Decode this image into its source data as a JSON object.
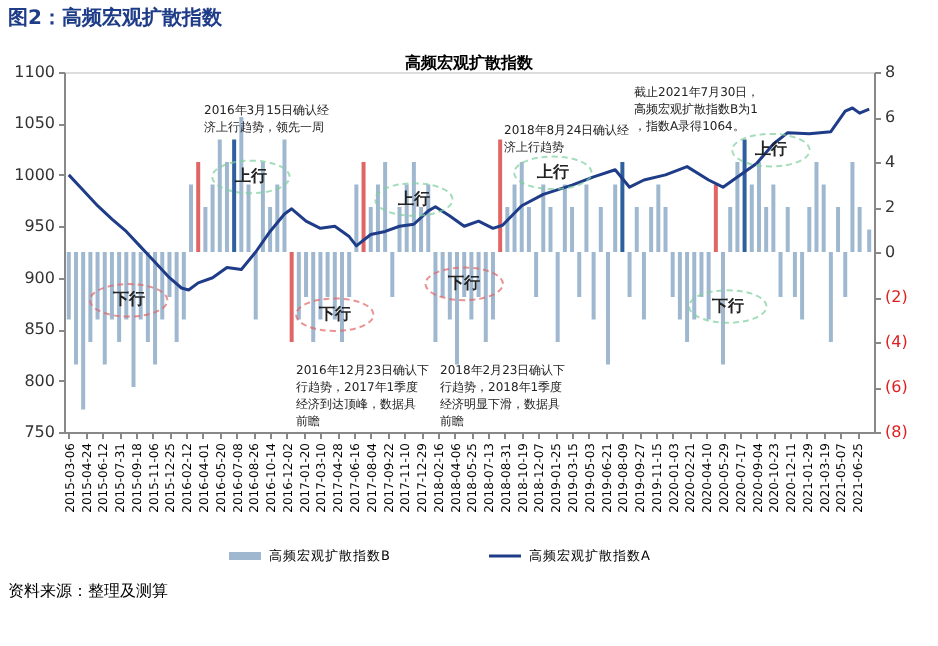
{
  "chart_data": {
    "type": "bar",
    "title": "图2：高频宏观扩散指数",
    "subtitle": "高频宏观扩散指数",
    "x": [
      "2015-03-06",
      "2015-03-27",
      "2015-04-17",
      "2015-05-08",
      "2015-05-29",
      "2015-06-19",
      "2015-07-10",
      "2015-07-31",
      "2015-08-21",
      "2015-09-11",
      "2015-10-02",
      "2015-10-23",
      "2015-11-13",
      "2015-12-04",
      "2015-12-25",
      "2016-01-15",
      "2016-02-05",
      "2016-02-26",
      "2016-03-18",
      "2016-04-08",
      "2016-04-29",
      "2016-05-20",
      "2016-06-10",
      "2016-07-01",
      "2016-07-22",
      "2016-08-12",
      "2016-09-02",
      "2016-09-23",
      "2016-10-14",
      "2016-11-04",
      "2016-11-25",
      "2016-12-16",
      "2017-01-06",
      "2017-01-27",
      "2017-02-17",
      "2017-03-10",
      "2017-03-31",
      "2017-04-21",
      "2017-05-12",
      "2017-06-02",
      "2017-06-23",
      "2017-07-14",
      "2017-08-04",
      "2017-08-25",
      "2017-09-15",
      "2017-10-06",
      "2017-10-27",
      "2017-11-17",
      "2017-12-08",
      "2017-12-29",
      "2018-01-19",
      "2018-02-09",
      "2018-03-02",
      "2018-03-23",
      "2018-04-13",
      "2018-05-04",
      "2018-05-25",
      "2018-06-15",
      "2018-07-06",
      "2018-07-27",
      "2018-08-17",
      "2018-09-07",
      "2018-09-28",
      "2018-10-19",
      "2018-11-09",
      "2018-11-30",
      "2018-12-21",
      "2019-01-11",
      "2019-02-01",
      "2019-02-22",
      "2019-03-15",
      "2019-04-05",
      "2019-04-26",
      "2019-05-17",
      "2019-06-07",
      "2019-06-28",
      "2019-07-19",
      "2019-08-09",
      "2019-08-30",
      "2019-09-20",
      "2019-10-11",
      "2019-11-01",
      "2019-11-22",
      "2019-12-13",
      "2020-01-03",
      "2020-01-24",
      "2020-02-14",
      "2020-03-06",
      "2020-03-27",
      "2020-04-17",
      "2020-05-08",
      "2020-05-29",
      "2020-06-19",
      "2020-07-10",
      "2020-07-31",
      "2020-08-21",
      "2020-09-11",
      "2020-10-02",
      "2020-10-23",
      "2020-11-13",
      "2020-12-04",
      "2020-12-25",
      "2021-01-15",
      "2021-02-05",
      "2021-02-26",
      "2021-03-19",
      "2021-04-09",
      "2021-04-30",
      "2021-05-21",
      "2021-06-11",
      "2021-07-02",
      "2021-07-30"
    ],
    "series": [
      {
        "name": "高频宏观扩散指数B",
        "axis": "y2",
        "color": "#9fb8d0",
        "values": [
          -3,
          -5,
          -7,
          -4,
          -3,
          -5,
          -3,
          -4,
          -3,
          -6,
          -3,
          -4,
          -5,
          -3,
          -2,
          -4,
          -3,
          3,
          4,
          2,
          3,
          5,
          4,
          5,
          6,
          3,
          -3,
          4,
          2,
          3,
          5,
          -4,
          -3,
          -2,
          -4,
          -3,
          -2,
          -3,
          -4,
          -2,
          3,
          4,
          2,
          3,
          4,
          -2,
          2,
          3,
          4,
          2,
          3,
          -4,
          -2,
          -3,
          -5,
          -2,
          -3,
          -2,
          -4,
          -3,
          5,
          2,
          3,
          4,
          2,
          -2,
          3,
          2,
          -4,
          3,
          2,
          -2,
          3,
          -3,
          2,
          -5,
          3,
          4,
          -2,
          2,
          -3,
          2,
          3,
          2,
          -2,
          -3,
          -4,
          -3,
          -2,
          -3,
          3,
          -5,
          2,
          4,
          5,
          3,
          4,
          2,
          3,
          -2,
          2,
          -2,
          -3,
          2,
          4,
          3,
          -4,
          2,
          -2,
          4,
          2,
          1
        ],
        "colors": [
          "#9fb8d0",
          "#9fb8d0",
          "#9fb8d0",
          "#9fb8d0",
          "#9fb8d0",
          "#9fb8d0",
          "#9fb8d0",
          "#9fb8d0",
          "#9fb8d0",
          "#9fb8d0",
          "#9fb8d0",
          "#9fb8d0",
          "#9fb8d0",
          "#9fb8d0",
          "#9fb8d0",
          "#9fb8d0",
          "#9fb8d0",
          "#9fb8d0",
          "#e06666",
          "#9fb8d0",
          "#9fb8d0",
          "#9fb8d0",
          "#9fb8d0",
          "#2e5f9e",
          "#9fb8d0",
          "#9fb8d0",
          "#9fb8d0",
          "#9fb8d0",
          "#9fb8d0",
          "#9fb8d0",
          "#9fb8d0",
          "#e06666",
          "#9fb8d0",
          "#9fb8d0",
          "#9fb8d0",
          "#9fb8d0",
          "#9fb8d0",
          "#9fb8d0",
          "#9fb8d0",
          "#9fb8d0",
          "#9fb8d0",
          "#e06666",
          "#9fb8d0",
          "#9fb8d0",
          "#9fb8d0",
          "#9fb8d0",
          "#9fb8d0",
          "#9fb8d0",
          "#9fb8d0",
          "#9fb8d0",
          "#9fb8d0",
          "#9fb8d0",
          "#9fb8d0",
          "#9fb8d0",
          "#9fb8d0",
          "#9fb8d0",
          "#9fb8d0",
          "#9fb8d0",
          "#9fb8d0",
          "#9fb8d0",
          "#e06666",
          "#9fb8d0",
          "#9fb8d0",
          "#9fb8d0",
          "#9fb8d0",
          "#9fb8d0",
          "#9fb8d0",
          "#9fb8d0",
          "#9fb8d0",
          "#9fb8d0",
          "#9fb8d0",
          "#9fb8d0",
          "#9fb8d0",
          "#9fb8d0",
          "#9fb8d0",
          "#9fb8d0",
          "#9fb8d0",
          "#2e5f9e",
          "#9fb8d0",
          "#9fb8d0",
          "#9fb8d0",
          "#9fb8d0",
          "#9fb8d0",
          "#9fb8d0",
          "#9fb8d0",
          "#9fb8d0",
          "#9fb8d0",
          "#9fb8d0",
          "#9fb8d0",
          "#9fb8d0",
          "#e06666",
          "#9fb8d0",
          "#9fb8d0",
          "#9fb8d0",
          "#2e5f9e",
          "#9fb8d0",
          "#9fb8d0",
          "#9fb8d0",
          "#9fb8d0",
          "#9fb8d0",
          "#9fb8d0",
          "#9fb8d0",
          "#9fb8d0",
          "#9fb8d0",
          "#9fb8d0",
          "#9fb8d0",
          "#9fb8d0",
          "#9fb8d0",
          "#9fb8d0",
          "#9fb8d0",
          "#9fb8d0",
          "#9fb8d0"
        ]
      },
      {
        "name": "高频宏观扩散指数A",
        "type": "line",
        "color": "#1f3c88",
        "x": [
          "2015-03-06",
          "2015-04-17",
          "2015-05-29",
          "2015-07-10",
          "2015-08-21",
          "2015-10-02",
          "2015-11-13",
          "2015-12-25",
          "2016-01-29",
          "2016-02-19",
          "2016-03-18",
          "2016-04-29",
          "2016-06-10",
          "2016-07-22",
          "2016-09-02",
          "2016-10-14",
          "2016-11-25",
          "2016-12-16",
          "2017-01-27",
          "2017-03-10",
          "2017-04-21",
          "2017-06-02",
          "2017-06-23",
          "2017-08-04",
          "2017-09-15",
          "2017-10-27",
          "2017-12-08",
          "2018-01-19",
          "2018-02-09",
          "2018-03-23",
          "2018-05-04",
          "2018-06-15",
          "2018-07-27",
          "2018-08-24",
          "2018-10-19",
          "2018-12-21",
          "2019-03-15",
          "2019-05-17",
          "2019-07-19",
          "2019-08-30",
          "2019-10-11",
          "2019-12-13",
          "2020-02-14",
          "2020-04-17",
          "2020-05-29",
          "2020-07-10",
          "2020-09-04",
          "2020-10-23",
          "2020-12-04",
          "2021-02-05",
          "2021-04-09",
          "2021-05-21",
          "2021-06-11",
          "2021-07-02",
          "2021-07-30"
        ],
        "values": [
          1000,
          985,
          970,
          957,
          945,
          930,
          915,
          900,
          890,
          888,
          895,
          900,
          910,
          908,
          925,
          945,
          962,
          967,
          955,
          948,
          950,
          940,
          931,
          942,
          945,
          950,
          952,
          965,
          969,
          960,
          950,
          955,
          948,
          951,
          970,
          981,
          990,
          998,
          1005,
          988,
          995,
          1000,
          1008,
          995,
          988,
          998,
          1011,
          1030,
          1041,
          1040,
          1042,
          1062,
          1065,
          1060,
          1064
        ]
      }
    ],
    "xlim": [
      "2015-02-20",
      "2021-08-13"
    ],
    "xticks": [
      "2015-03-06",
      "2015-04-24",
      "2015-06-12",
      "2015-07-31",
      "2015-09-18",
      "2015-11-06",
      "2015-12-25",
      "2016-02-12",
      "2016-04-01",
      "2016-05-20",
      "2016-07-08",
      "2016-08-26",
      "2016-10-14",
      "2016-12-02",
      "2017-01-20",
      "2017-03-10",
      "2017-04-28",
      "2017-06-16",
      "2017-08-04",
      "2017-09-22",
      "2017-11-10",
      "2017-12-29",
      "2018-02-16",
      "2018-04-06",
      "2018-05-25",
      "2018-07-13",
      "2018-08-31",
      "2018-10-19",
      "2018-12-07",
      "2019-01-25",
      "2019-03-15",
      "2019-05-03",
      "2019-06-21",
      "2019-08-09",
      "2019-09-27",
      "2019-11-15",
      "2020-01-03",
      "2020-02-21",
      "2020-04-10",
      "2020-05-29",
      "2020-07-17",
      "2020-09-04",
      "2020-10-23",
      "2020-12-11",
      "2021-01-29",
      "2021-03-19",
      "2021-05-07",
      "2021-06-25"
    ],
    "ylim": [
      750,
      1100
    ],
    "yticks": [
      750,
      800,
      850,
      900,
      950,
      1000,
      1050,
      1100
    ],
    "y2lim": [
      -8,
      8
    ],
    "y2ticks": [
      {
        "value": -8,
        "label": "(8)"
      },
      {
        "value": -6,
        "label": "(6)"
      },
      {
        "value": -4,
        "label": "(4)"
      },
      {
        "value": -2,
        "label": "(2)"
      },
      0,
      2,
      4,
      6,
      8
    ],
    "grid": false,
    "legend": "bottom",
    "marker": "none",
    "line_style": "solid",
    "annotations": [
      {
        "text": "上行",
        "x": "2016-08-19",
        "y": 998
      },
      {
        "text": "上行",
        "x": "2017-12-08",
        "y": 976
      },
      {
        "text": "上行",
        "x": "2019-01-18",
        "y": 1002
      },
      {
        "text": "上行",
        "x": "2020-10-16",
        "y": 1024
      },
      {
        "text": "下行",
        "x": "2015-08-28",
        "y": 878
      },
      {
        "text": "下行",
        "x": "2017-04-21",
        "y": 864
      },
      {
        "text": "下行",
        "x": "2018-05-04",
        "y": 894
      },
      {
        "text": "下行",
        "x": "2020-06-12",
        "y": 872
      },
      "2016年3月15日确认经济上行趋势，领先一周",
      "2016年12月23日确认下行趋势，2017年1季度经济到达顶峰，数据具前瞻",
      "2018年2月23日确认下行趋势，2018年1季度经济明显下滑，数据具前瞻",
      "2018年8月24日确认经济上行趋势",
      "截止2021年7月30日，高频宏观扩散指数B为1，指数A录得1064。",
      "资料来源：整理及测算"
    ]
  }
}
